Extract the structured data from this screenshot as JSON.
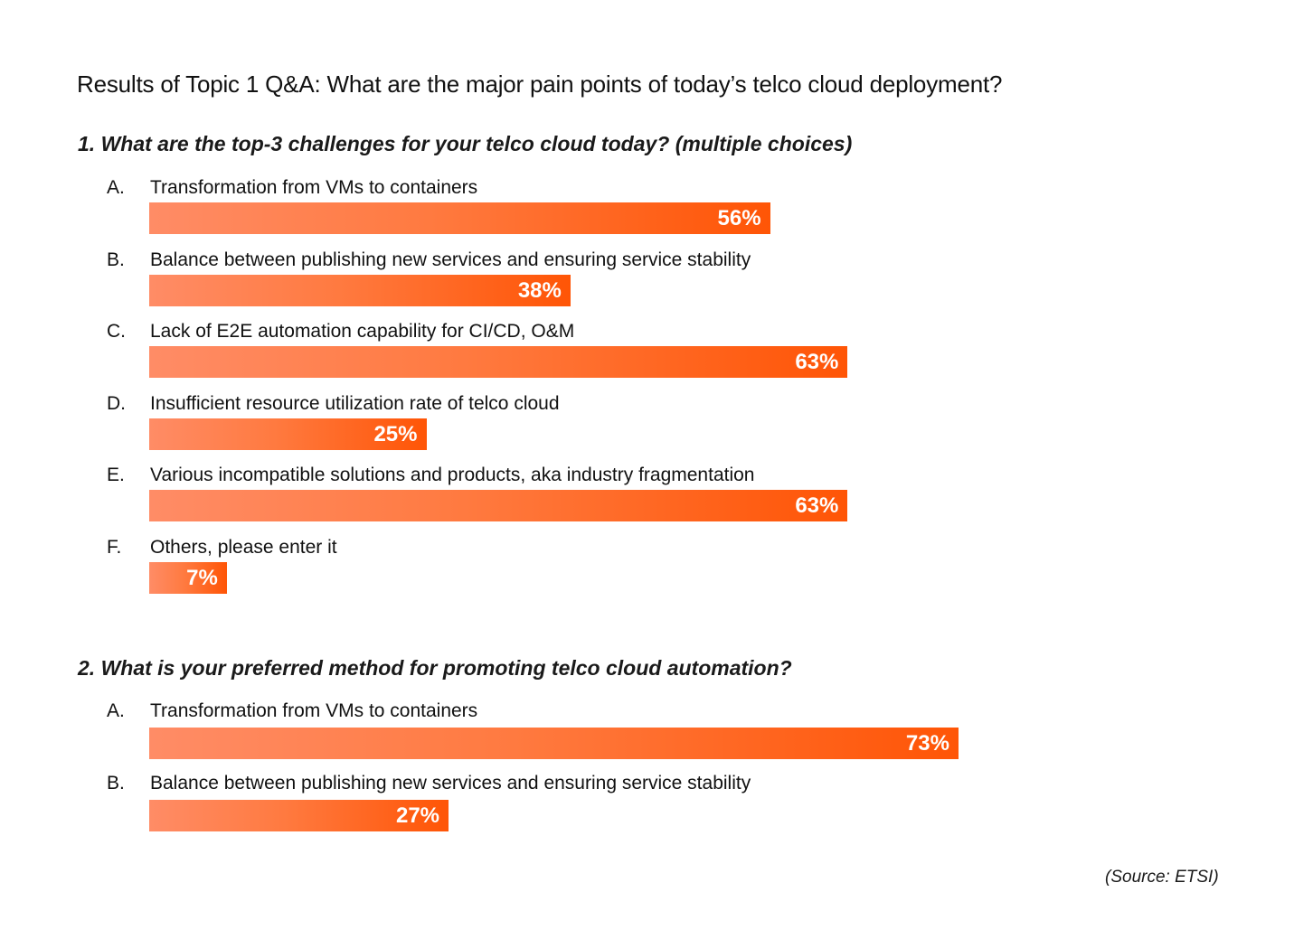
{
  "title": "Results of Topic 1 Q&A: What are the major pain points of today’s telco cloud deployment?",
  "source": "(Source: ETSI)",
  "chart_data": [
    {
      "type": "bar",
      "orientation": "horizontal",
      "title": "1. What are the top-3 challenges for your telco cloud today? (multiple choices)",
      "xlabel": "",
      "ylabel": "",
      "xlim": [
        0,
        100
      ],
      "unit": "%",
      "grid": false,
      "categories": [
        {
          "letter": "A.",
          "label": "Transformation from VMs to containers"
        },
        {
          "letter": "B.",
          "label": "Balance between publishing new services and ensuring service stability"
        },
        {
          "letter": "C.",
          "label": "Lack of E2E automation capability for CI/CD, O&M"
        },
        {
          "letter": "D.",
          "label": "Insufficient resource utilization rate of telco cloud"
        },
        {
          "letter": "E.",
          "label": "Various incompatible solutions and products, aka industry fragmentation"
        },
        {
          "letter": "F.",
          "label": "Others, please enter it"
        }
      ],
      "values": [
        56,
        38,
        63,
        25,
        63,
        7
      ],
      "value_labels": [
        "56%",
        "38%",
        "63%",
        "25%",
        "63%",
        "7%"
      ]
    },
    {
      "type": "bar",
      "orientation": "horizontal",
      "title": "2. What is your preferred method for promoting telco cloud automation?",
      "xlabel": "",
      "ylabel": "",
      "xlim": [
        0,
        100
      ],
      "unit": "%",
      "grid": false,
      "categories": [
        {
          "letter": "A.",
          "label": "Transformation from VMs to containers"
        },
        {
          "letter": "B.",
          "label": "Balance between publishing new services and ensuring service stability"
        }
      ],
      "values": [
        73,
        27
      ],
      "value_labels": [
        "73%",
        "27%"
      ]
    }
  ],
  "colors": {
    "bar_gradient_start": "#ff8c66",
    "bar_gradient_end": "#ff5506",
    "value_text": "#ffffff"
  }
}
